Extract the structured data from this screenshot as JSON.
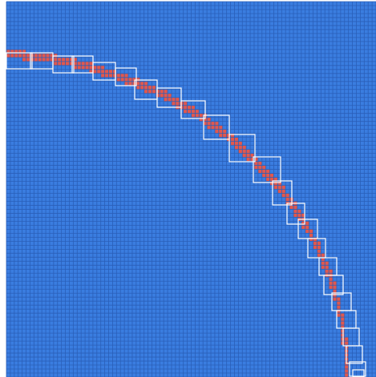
{
  "colors": {
    "background": "#ffffff",
    "cell_fill": "#3a7de0",
    "grid_line": "#2a5fb8",
    "path_fill": "#e0584f",
    "box_stroke": "#ffffff"
  },
  "grid": {
    "columns": 94,
    "rows": 94
  },
  "arc": {
    "description_shape": "quarter-circle",
    "start_cell": [
      0,
      13
    ],
    "end_cell": [
      86,
      93
    ]
  },
  "boxes_count": 24
}
